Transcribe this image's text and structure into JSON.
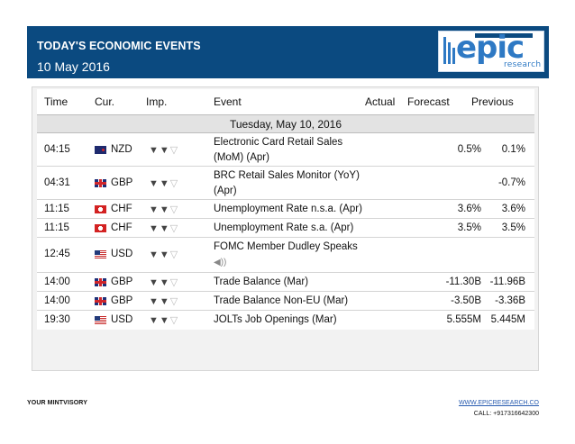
{
  "banner": {
    "title": "TODAY'S ECONOMIC EVENTS",
    "date": "10 May 2016",
    "color": "#0b4a80"
  },
  "logo": {
    "word": "epic",
    "sub": "research"
  },
  "table": {
    "headers": {
      "time": "Time",
      "cur": "Cur.",
      "imp": "Imp.",
      "event": "Event",
      "actual": "Actual",
      "forecast": "Forecast",
      "previous": "Previous"
    },
    "day": "Tuesday, May 10, 2016",
    "rows": [
      {
        "time": "04:15",
        "flag": "nz-flag-icon",
        "cur": "NZD",
        "event1": "Electronic Card Retail Sales",
        "event2": "(MoM) (Apr)",
        "actual": "",
        "forecast": "0.5%",
        "previous": "0.1%",
        "importance": "2 of 3"
      },
      {
        "time": "04:31",
        "flag": "uk-flag-icon",
        "cur": "GBP",
        "event1": "BRC Retail Sales Monitor (YoY)",
        "event2": "(Apr)",
        "actual": "",
        "forecast": "",
        "previous": "-0.7%",
        "importance": "2 of 3"
      },
      {
        "time": "11:15",
        "flag": "ch-flag-icon",
        "cur": "CHF",
        "event1": "Unemployment Rate n.s.a. (Apr)",
        "actual": "",
        "forecast": "3.6%",
        "previous": "3.6%",
        "importance": "2 of 3"
      },
      {
        "time": "11:15",
        "flag": "ch-flag-icon",
        "cur": "CHF",
        "event1": "Unemployment Rate s.a. (Apr)",
        "actual": "",
        "forecast": "3.5%",
        "previous": "3.5%",
        "importance": "2 of 3"
      },
      {
        "time": "12:45",
        "flag": "us-flag-icon",
        "cur": "USD",
        "event1": "FOMC Member Dudley Speaks",
        "actual": "",
        "forecast": "",
        "previous": "",
        "importance": "2 of 3"
      },
      {
        "time": "14:00",
        "flag": "uk-flag-icon",
        "cur": "GBP",
        "event1": "Trade Balance (Mar)",
        "actual": "",
        "forecast": "-11.30B",
        "previous": "-11.96B",
        "importance": "2 of 3"
      },
      {
        "time": "14:00",
        "flag": "uk-flag-icon",
        "cur": "GBP",
        "event1": "Trade Balance Non-EU (Mar)",
        "actual": "",
        "forecast": "-3.50B",
        "previous": "-3.36B",
        "importance": "2 of 3"
      },
      {
        "time": "19:30",
        "flag": "us-flag-icon",
        "cur": "USD",
        "event1": "JOLTs Job Openings (Mar)",
        "actual": "",
        "forecast": "5.555M",
        "previous": "5.445M",
        "importance": "2 of 3"
      }
    ]
  },
  "footer": {
    "left": "YOUR MINTVISORY",
    "url": "WWW.EPICRESEARCH.CO",
    "call": "CALL: +917316642300"
  }
}
